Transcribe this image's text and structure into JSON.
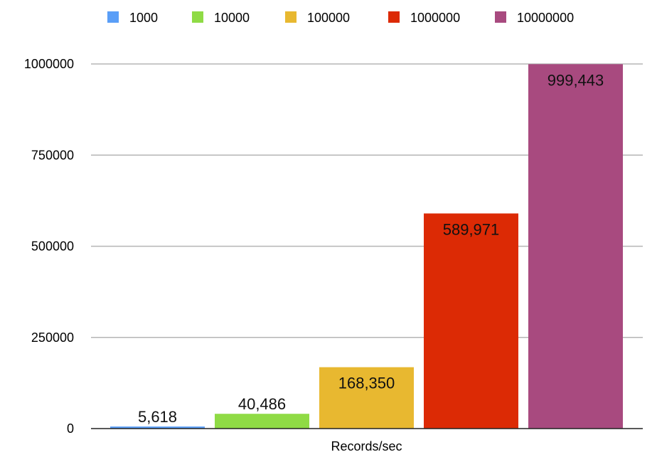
{
  "chart_data": {
    "type": "bar",
    "categories": [
      "Records/sec"
    ],
    "series": [
      {
        "name": "1000",
        "values": [
          5618
        ],
        "label": "5,618",
        "color": "#5a9ef7"
      },
      {
        "name": "10000",
        "values": [
          40486
        ],
        "label": "40,486",
        "color": "#8fdb45"
      },
      {
        "name": "100000",
        "values": [
          168350
        ],
        "label": "168,350",
        "color": "#e8b830"
      },
      {
        "name": "1000000",
        "values": [
          589971
        ],
        "label": "589,971",
        "color": "#dc2a05"
      },
      {
        "name": "10000000",
        "values": [
          999443
        ],
        "label": "999,443",
        "color": "#a84a7f"
      }
    ],
    "yticks": [
      "0",
      "250000",
      "500000",
      "750000",
      "1000000"
    ],
    "ytick_values": [
      0,
      250000,
      500000,
      750000,
      1000000
    ],
    "ylim": [
      0,
      1000000
    ],
    "grid": true,
    "legend": "top"
  }
}
